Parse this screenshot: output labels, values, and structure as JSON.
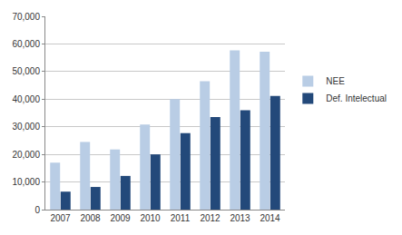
{
  "chart_data": {
    "type": "bar",
    "categories": [
      "2007",
      "2008",
      "2009",
      "2010",
      "2011",
      "2012",
      "2013",
      "2014"
    ],
    "series": [
      {
        "name": "NEE",
        "color": "#b9cde5",
        "values": [
          17000,
          24500,
          21800,
          30800,
          40000,
          46500,
          57700,
          57200
        ]
      },
      {
        "name": "Def. Intelectual",
        "color": "#23497a",
        "values": [
          6500,
          8200,
          12200,
          20000,
          27700,
          33500,
          36000,
          41200
        ]
      }
    ],
    "ylim": [
      0,
      70000
    ],
    "yticks": [
      0,
      {
        "value": 10000,
        "label": "10,000"
      },
      {
        "value": 20000,
        "label": "20,000"
      },
      {
        "value": 30000,
        "label": "30,000"
      },
      {
        "value": 40000,
        "label": "40,000"
      },
      {
        "value": 50000,
        "label": "50,000"
      },
      {
        "value": 60000,
        "label": "60,000"
      },
      {
        "value": 70000,
        "label": "70,000"
      }
    ],
    "grid": true,
    "legend": "right"
  }
}
